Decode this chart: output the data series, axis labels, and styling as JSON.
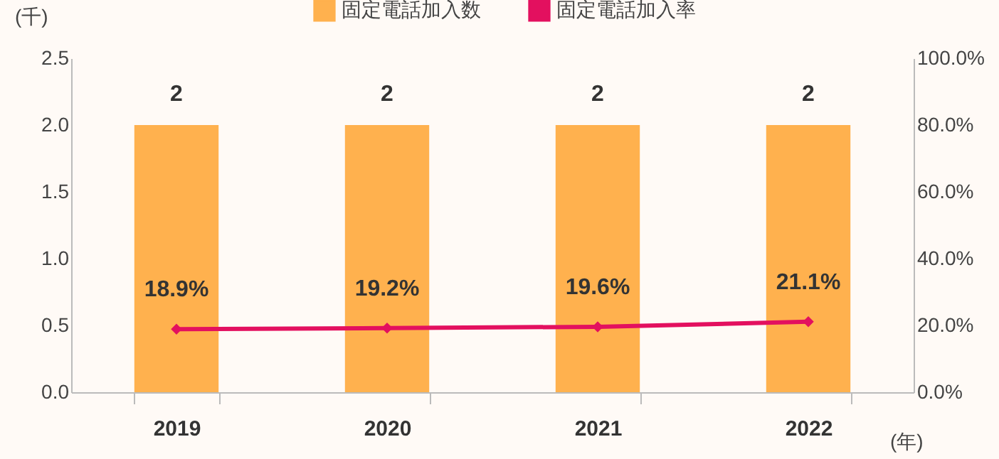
{
  "chart_data": {
    "type": "bar",
    "ylabel": "(千)",
    "xlabel": "(年)",
    "categories": [
      "2019",
      "2020",
      "2021",
      "2022"
    ],
    "series": [
      {
        "name": "固定電話加入数",
        "color": "#ffb14e",
        "values": [
          2,
          2,
          2,
          2
        ],
        "value_labels": [
          "2",
          "2",
          "2",
          "2"
        ]
      },
      {
        "name": "固定電話加入率",
        "type": "line",
        "axis": "y2",
        "color": "#e3105f",
        "values": [
          18.9,
          19.2,
          19.6,
          21.1
        ],
        "value_labels": [
          "18.9%",
          "19.2%",
          "19.6%",
          "21.1%"
        ]
      }
    ],
    "ylim": [
      0,
      2.5
    ],
    "yticks": [
      {
        "value": 0,
        "label": "0.0"
      },
      {
        "value": 0.5,
        "label": "0.5"
      },
      {
        "value": 1,
        "label": "1.0"
      },
      {
        "value": 1.5,
        "label": "1.5"
      },
      {
        "value": 2,
        "label": "2.0"
      },
      {
        "value": 2.5,
        "label": "2.5"
      }
    ],
    "y2lim": [
      0,
      100
    ],
    "y2ticks": [
      {
        "value": 0,
        "label": "0.0%"
      },
      {
        "value": 20,
        "label": "20.0%"
      },
      {
        "value": 40,
        "label": "40.0%"
      },
      {
        "value": 60,
        "label": "60.0%"
      },
      {
        "value": 80,
        "label": "80.0%"
      },
      {
        "value": 100,
        "label": "100.0%"
      }
    ],
    "marker": "diamond",
    "legend": "top"
  }
}
